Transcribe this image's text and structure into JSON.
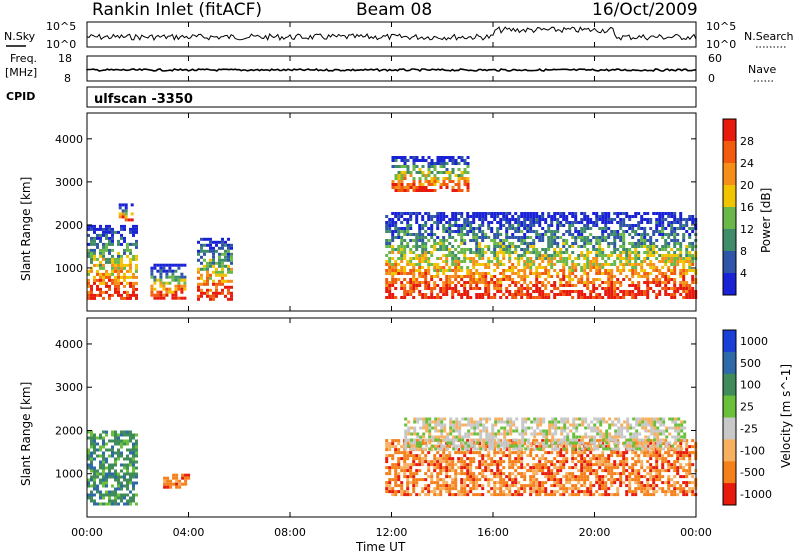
{
  "header": {
    "station": "Rankin Inlet (fitACF)",
    "beam": "Beam 08",
    "date": "16/Oct/2009"
  },
  "strip_labels": {
    "nsky": "N.Sky",
    "nsky_top": "10^5",
    "nsky_bottom": "10^0",
    "nsearch": "N.Search",
    "nsearch_top": "10^5",
    "nsearch_bottom": "10^0",
    "freq_line1": "Freq.",
    "freq_line2": "[MHz]",
    "freq_top": "18",
    "freq_bottom": "8",
    "nave": "Nave",
    "nave_top": "60",
    "nave_bottom": "0",
    "cpid": "CPID",
    "cpid_value": "ulfscan -3350"
  },
  "chart_data": [
    {
      "type": "heatmap",
      "name": "power-panel",
      "ylabel": "Slant Range [km]",
      "y_ticks": [
        "1000",
        "2000",
        "3000",
        "4000"
      ],
      "ylim": [
        0,
        4600
      ],
      "colorbar_label": "Power [dB]",
      "colorbar_ticks": [
        "4",
        "8",
        "12",
        "16",
        "20",
        "24",
        "28"
      ],
      "colors": [
        "#1a22d6",
        "#2f55a8",
        "#3f8b6a",
        "#6ab84a",
        "#f0c400",
        "#f58f1a",
        "#f25a0d",
        "#e81a0c"
      ],
      "echo_regions": [
        {
          "start": "00:00",
          "end": "02:00",
          "range_from": 300,
          "range_to": 2000
        },
        {
          "start": "01:15",
          "end": "01:45",
          "range_from": 2100,
          "range_to": 2500
        },
        {
          "start": "02:30",
          "end": "03:50",
          "range_from": 300,
          "range_to": 1100
        },
        {
          "start": "04:20",
          "end": "05:45",
          "range_from": 300,
          "range_to": 1700
        },
        {
          "start": "11:45",
          "end": "24:00",
          "range_from": 300,
          "range_to": 2300
        },
        {
          "start": "12:00",
          "end": "15:00",
          "range_from": 2800,
          "range_to": 3600
        }
      ]
    },
    {
      "type": "heatmap",
      "name": "velocity-panel",
      "xlabel": "Time UT",
      "ylabel": "Slant Range [km]",
      "x_ticks": [
        "00:00",
        "04:00",
        "08:00",
        "12:00",
        "16:00",
        "20:00",
        "00:00"
      ],
      "y_ticks": [
        "1000",
        "2000",
        "3000",
        "4000"
      ],
      "ylim": [
        0,
        4600
      ],
      "colorbar_label": "Velocity [m s^-1]",
      "colorbar_ticks": [
        "1000",
        "500",
        "100",
        "25",
        "-25",
        "-100",
        "-500",
        "-1000"
      ],
      "colors": [
        "#1a3fd6",
        "#2f6aa8",
        "#3f8b5a",
        "#6ac03a",
        "#c8c8c8",
        "#f7b060",
        "#f5801a",
        "#e81a0c"
      ],
      "echo_regions": [
        {
          "start": "00:00",
          "end": "02:00",
          "range_from": 300,
          "range_to": 2000,
          "velocity": "100"
        },
        {
          "start": "03:00",
          "end": "04:00",
          "range_from": 700,
          "range_to": 1000,
          "velocity": "-500"
        },
        {
          "start": "11:45",
          "end": "24:00",
          "range_from": 500,
          "range_to": 1800,
          "velocity": "-500"
        },
        {
          "start": "12:30",
          "end": "23:30",
          "range_from": 1600,
          "range_to": 2300,
          "velocity": "-25"
        }
      ]
    }
  ]
}
